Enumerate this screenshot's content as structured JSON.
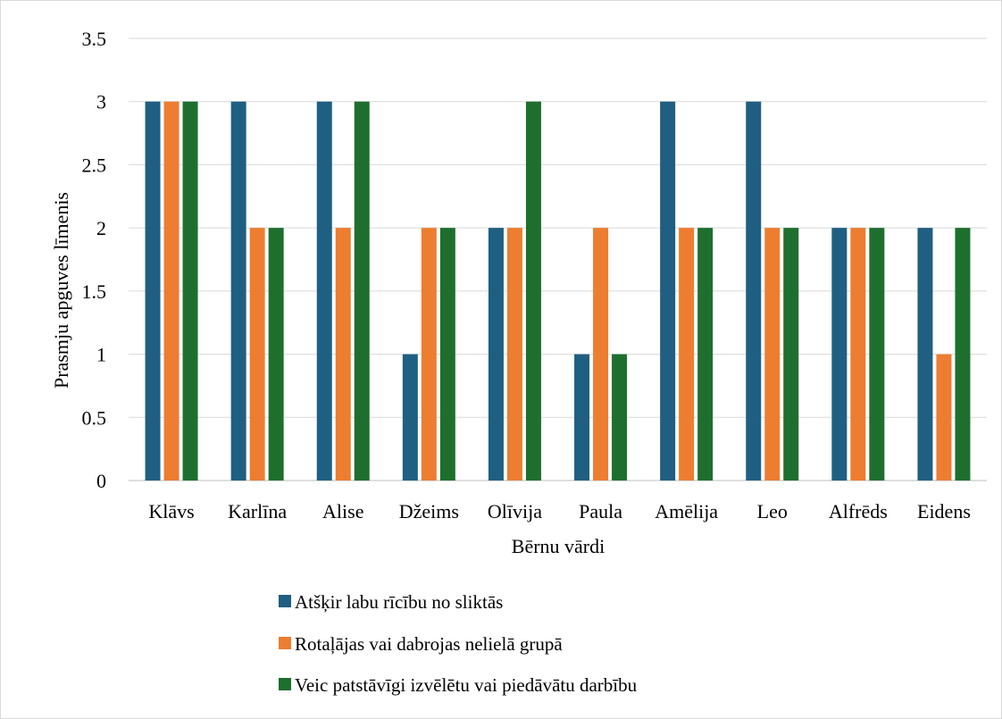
{
  "chart_data": {
    "type": "bar",
    "title": "",
    "xlabel": "Bērnu vārdi",
    "ylabel": "Prasmju apguves līmenis",
    "ylim": [
      0,
      3.5
    ],
    "yticks": [
      "0",
      "0.5",
      "1",
      "1.5",
      "2",
      "2.5",
      "3",
      "3.5"
    ],
    "grid": true,
    "legend_position": "bottom",
    "categories": [
      "Klāvs",
      "Karlīna",
      "Alise",
      "Džeims",
      "Olīvija",
      "Paula",
      "Amēlija",
      "Leo",
      "Alfrēds",
      "Eidens"
    ],
    "series": [
      {
        "name": "Atšķir labu rīcību no sliktās",
        "color": "#1F5F82",
        "values": [
          3,
          3,
          3,
          1,
          2,
          1,
          3,
          3,
          2,
          2
        ]
      },
      {
        "name": "Rotaļājas vai dabrojas nelielā grupā",
        "color": "#ED7D31",
        "values": [
          3,
          2,
          2,
          2,
          2,
          2,
          2,
          2,
          2,
          1
        ]
      },
      {
        "name": "Veic patstāvīgi izvēlētu vai piedāvātu darbību",
        "color": "#1E6F2E",
        "values": [
          3,
          2,
          3,
          2,
          3,
          1,
          2,
          2,
          2,
          2
        ]
      }
    ]
  }
}
